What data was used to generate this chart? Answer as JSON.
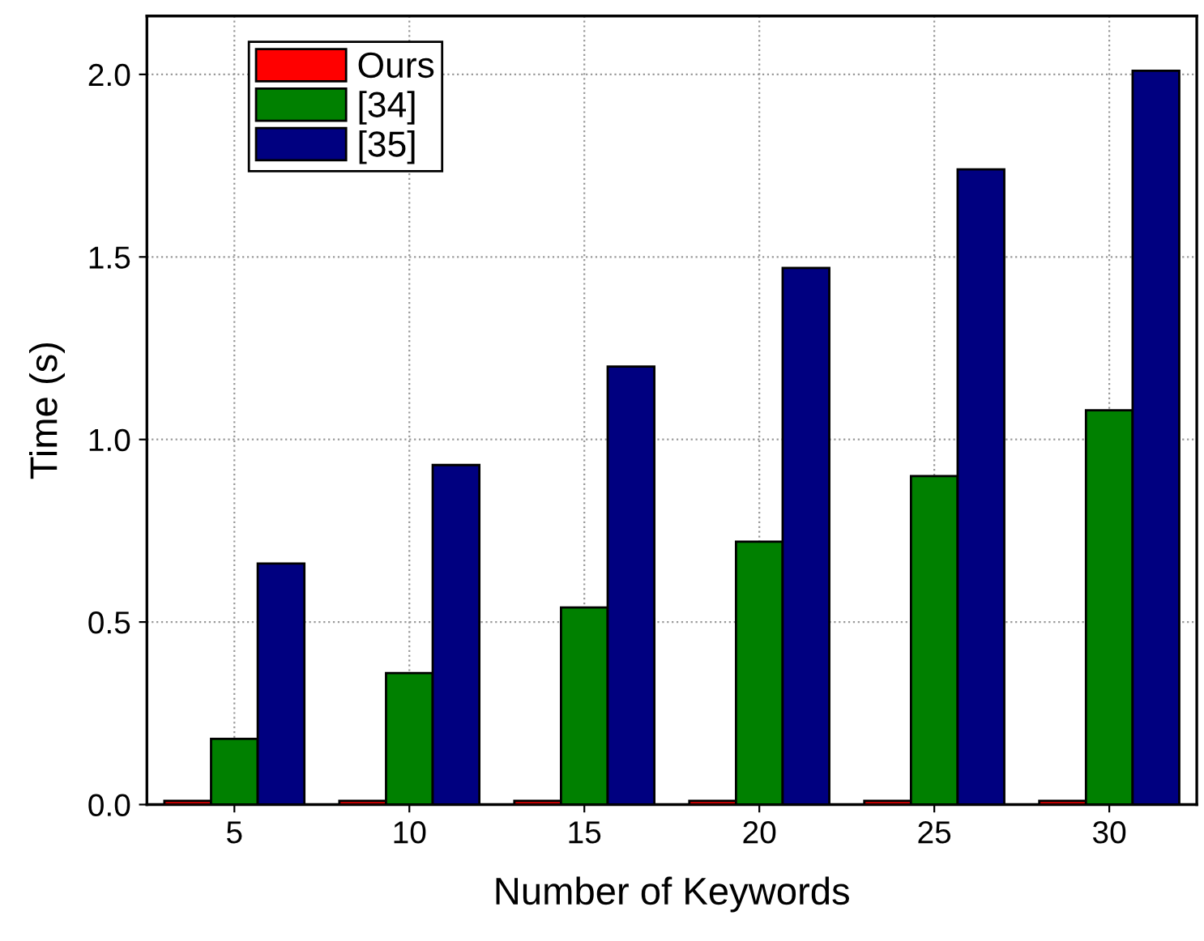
{
  "chart_data": {
    "type": "bar",
    "xlabel": "Number of Keywords",
    "ylabel": "Time (s)",
    "categories": [
      "5",
      "10",
      "15",
      "20",
      "25",
      "30"
    ],
    "series": [
      {
        "name": "Ours",
        "color": "#ff0000",
        "values": [
          0.01,
          0.01,
          0.01,
          0.01,
          0.01,
          0.01
        ]
      },
      {
        "name": "[34]",
        "color": "#008000",
        "values": [
          0.18,
          0.36,
          0.54,
          0.72,
          0.9,
          1.08
        ]
      },
      {
        "name": "[35]",
        "color": "#000080",
        "values": [
          0.66,
          0.93,
          1.2,
          1.47,
          1.74,
          2.01
        ]
      }
    ],
    "ylim": [
      0,
      2.16
    ],
    "yticks": [
      {
        "value": 0,
        "label": "0.0"
      },
      0.5,
      {
        "value": 1,
        "label": "1.0"
      },
      1.5,
      {
        "value": 2,
        "label": "2.0"
      }
    ],
    "grid": true,
    "legend": "top left"
  }
}
